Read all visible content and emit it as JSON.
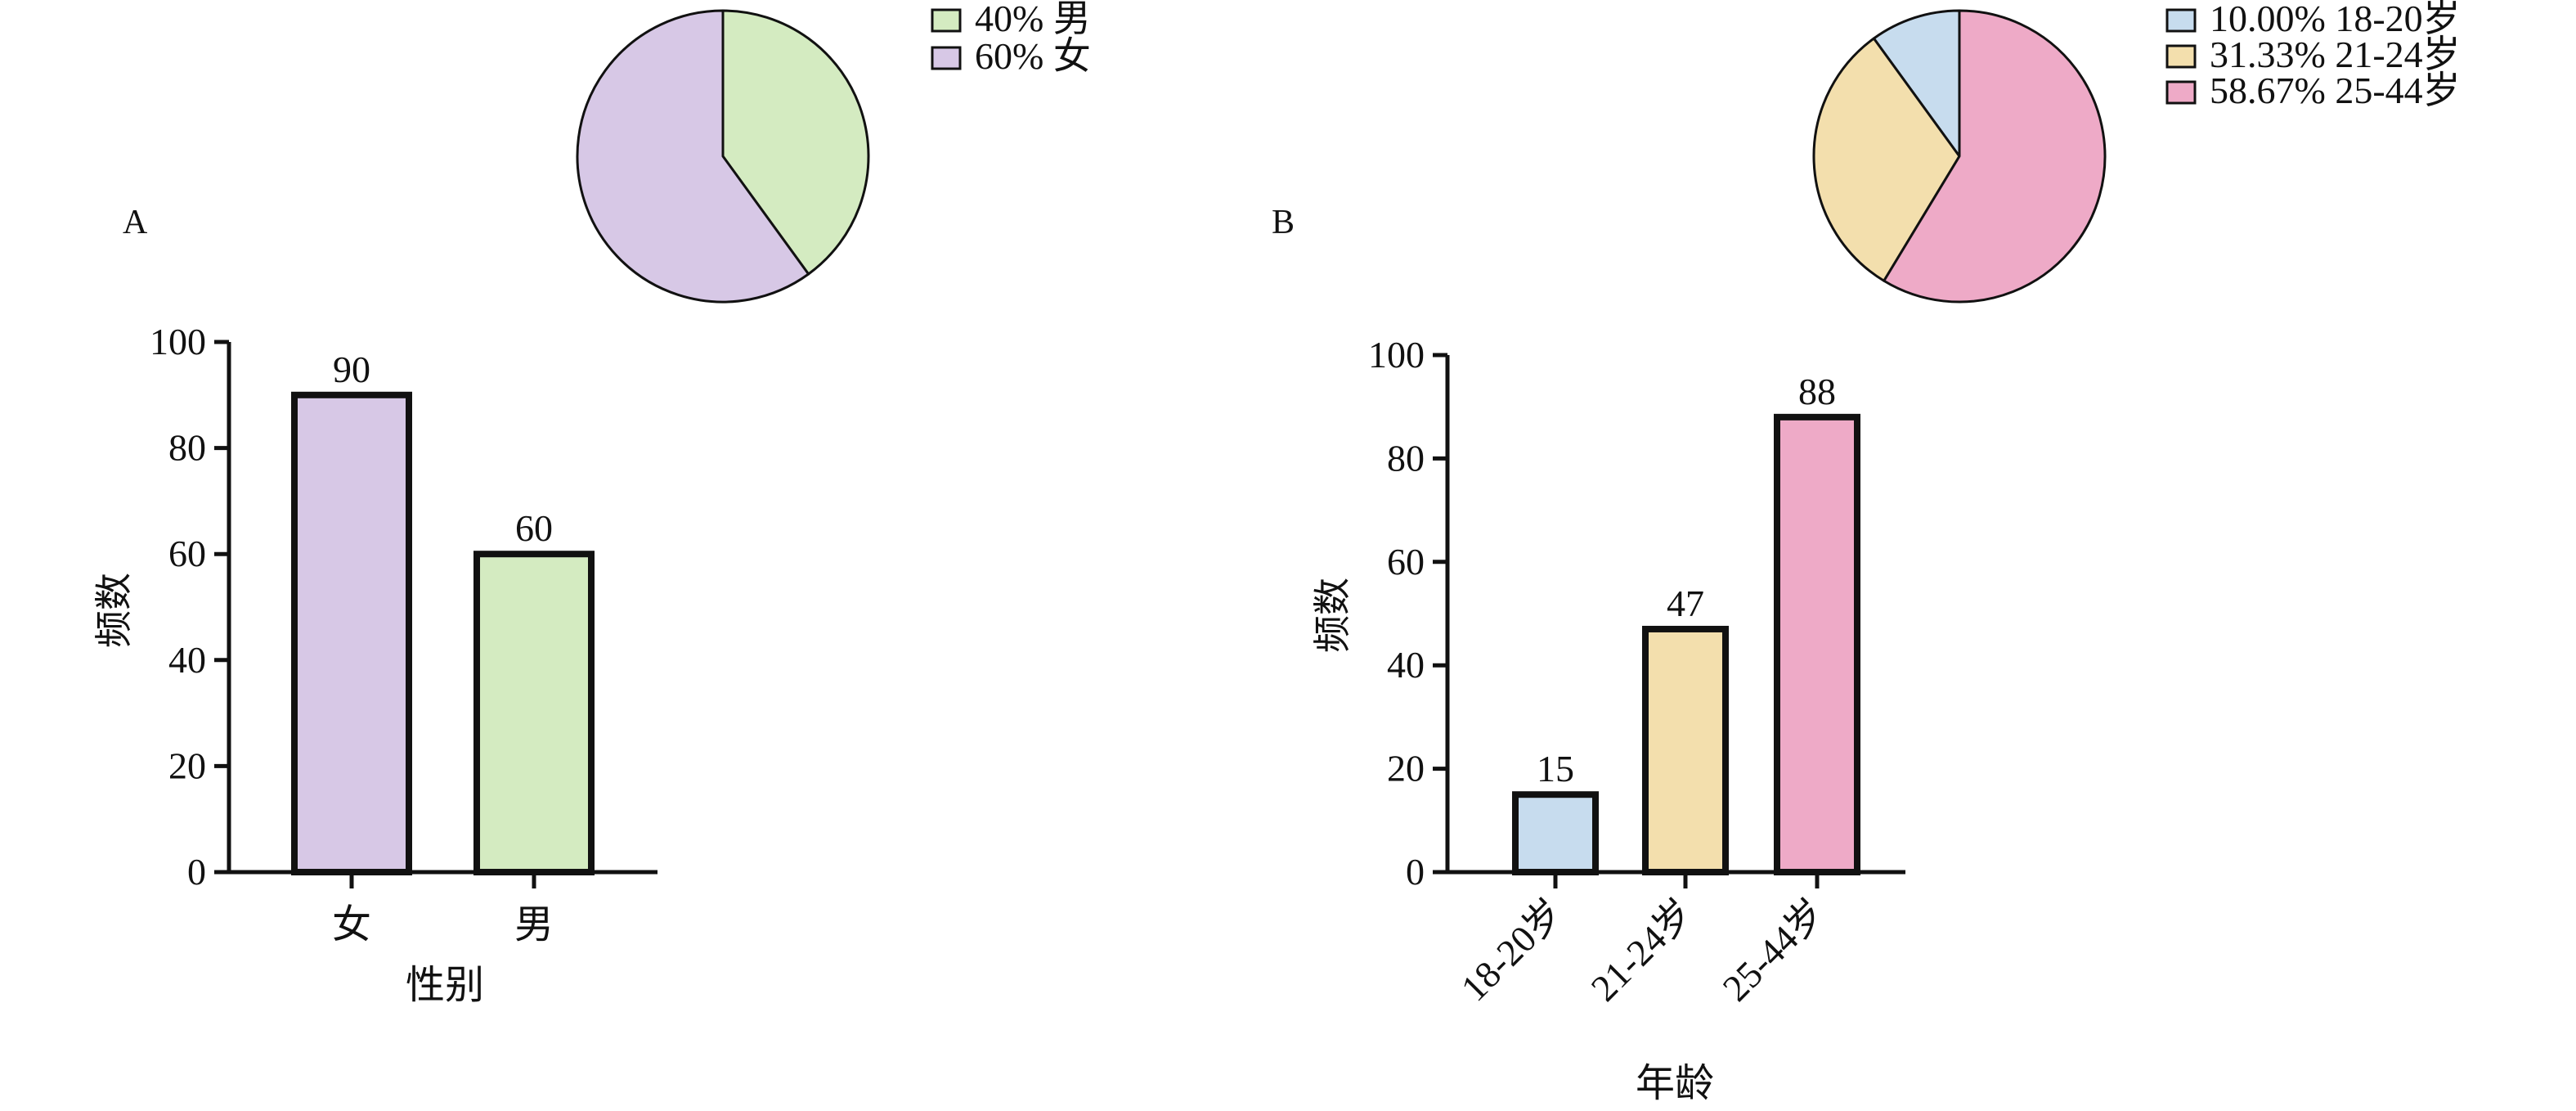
{
  "panels": {
    "a": {
      "letter": "A"
    },
    "b": {
      "letter": "B"
    }
  },
  "chart_data": [
    {
      "type": "pie",
      "panel": "A",
      "slices": [
        {
          "label": "40% 男",
          "value": 40,
          "color": "#d4ebc1"
        },
        {
          "label": "60% 女",
          "value": 60,
          "color": "#d7c8e6"
        }
      ],
      "start_angle_deg": 0,
      "direction": "clockwise",
      "legend_position": "top-right"
    },
    {
      "type": "bar",
      "panel": "A",
      "categories": [
        "女",
        "男"
      ],
      "values": [
        90,
        60
      ],
      "data_labels": [
        "90",
        "60"
      ],
      "colors": [
        "#d7c8e6",
        "#d4ebc1"
      ],
      "xlabel": "性别",
      "ylabel": "频数",
      "ylim": [
        0,
        100
      ],
      "yticks": [
        "0",
        "20",
        "40",
        "60",
        "80",
        "100"
      ],
      "grid": false
    },
    {
      "type": "pie",
      "panel": "B",
      "slices": [
        {
          "label": "10.00% 18-20岁",
          "value": 10.0,
          "color": "#c7dcee"
        },
        {
          "label": "31.33% 21-24岁",
          "value": 31.33,
          "color": "#f3dfad"
        },
        {
          "label": "58.67% 25-44岁",
          "value": 58.67,
          "color": "#eeaac7"
        }
      ],
      "start_angle_deg": 0,
      "direction": "counterclockwise",
      "legend_position": "top-right"
    },
    {
      "type": "bar",
      "panel": "B",
      "categories": [
        "18-20岁",
        "21-24岁",
        "25-44岁"
      ],
      "values": [
        15,
        47,
        88
      ],
      "data_labels": [
        "15",
        "47",
        "88"
      ],
      "colors": [
        "#c7dcee",
        "#f3dfad",
        "#eeaac7"
      ],
      "xlabel": "年龄",
      "ylabel": "频数",
      "ylim": [
        0,
        100
      ],
      "yticks": [
        "0",
        "20",
        "40",
        "60",
        "80",
        "100"
      ],
      "xtick_rotation": -45,
      "grid": false
    }
  ]
}
